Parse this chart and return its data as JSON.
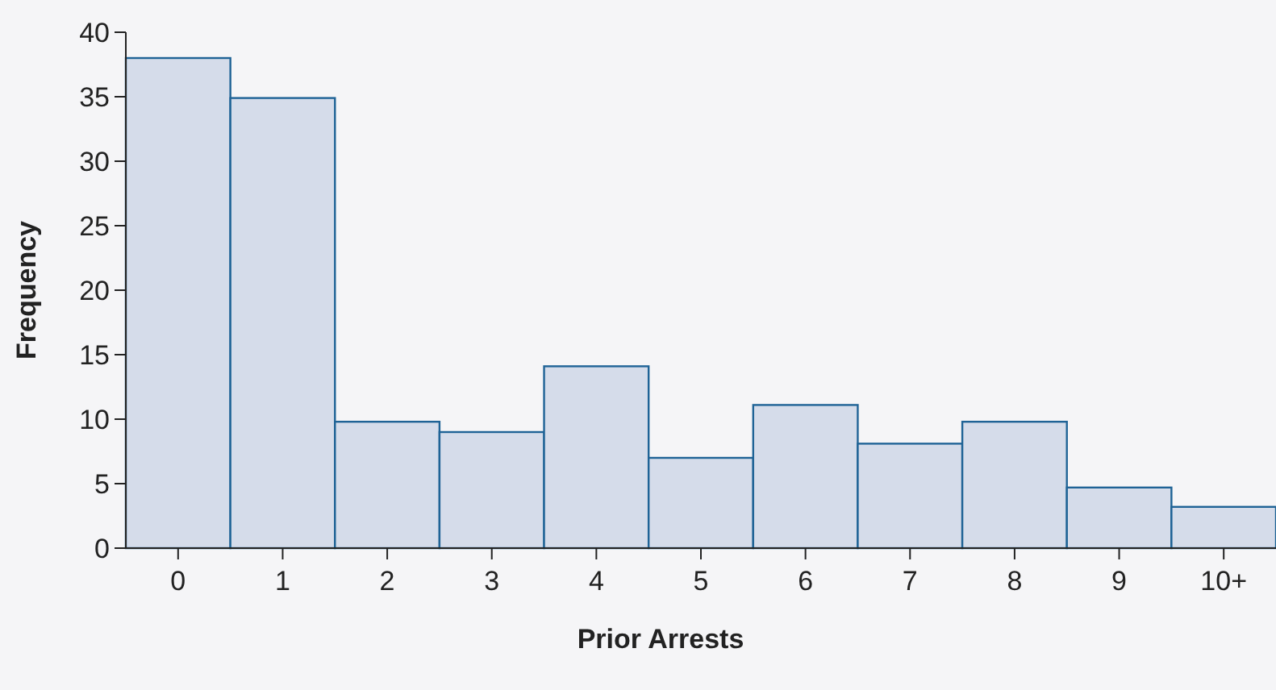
{
  "chart_data": {
    "type": "bar",
    "xlabel": "Prior Arrests",
    "ylabel": "Frequency",
    "categories": [
      "0",
      "1",
      "2",
      "3",
      "4",
      "5",
      "6",
      "7",
      "8",
      "9",
      "10+"
    ],
    "values": [
      38,
      34.9,
      9.8,
      9,
      14.1,
      7,
      11.1,
      8.1,
      9.8,
      4.7,
      3.2
    ],
    "color": "#d5dcea",
    "ylim": [
      0,
      40
    ],
    "yticks": [
      0,
      5,
      10,
      15,
      20,
      25,
      30,
      35,
      40
    ],
    "grid": false
  }
}
